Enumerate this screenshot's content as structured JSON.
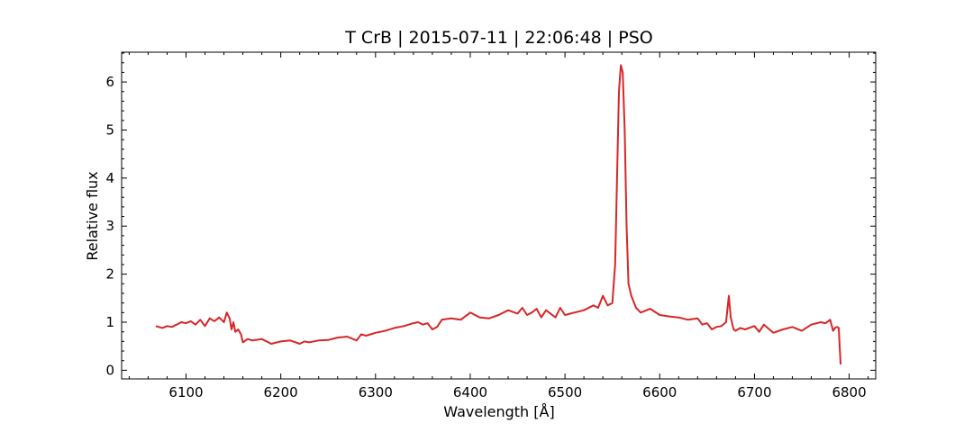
{
  "chart_data": {
    "type": "line",
    "title": "T CrB | 2015-07-11 | 22:06:48 | PSO",
    "xlabel": "Wavelength [Å]",
    "ylabel": "Relative flux",
    "xlim": [
      6032,
      6828
    ],
    "ylim": [
      -0.18,
      6.62
    ],
    "xticks": [
      6100,
      6200,
      6300,
      6400,
      6500,
      6600,
      6700,
      6800
    ],
    "yticks": [
      0,
      1,
      2,
      3,
      4,
      5,
      6
    ],
    "grid": false,
    "line_color": "#d62728",
    "series": [
      {
        "x": [
          6068,
          6075,
          6080,
          6085,
          6090,
          6095,
          6100,
          6105,
          6110,
          6115,
          6120,
          6125,
          6130,
          6135,
          6140,
          6143,
          6146,
          6148,
          6150,
          6152,
          6155,
          6158,
          6160,
          6165,
          6170,
          6180,
          6190,
          6200,
          6210,
          6220,
          6225,
          6230,
          6240,
          6250,
          6260,
          6270,
          6280,
          6285,
          6290,
          6300,
          6310,
          6320,
          6330,
          6340,
          6345,
          6350,
          6355,
          6360,
          6365,
          6370,
          6380,
          6390,
          6400,
          6405,
          6410,
          6420,
          6430,
          6440,
          6450,
          6455,
          6460,
          6465,
          6470,
          6475,
          6480,
          6490,
          6495,
          6500,
          6510,
          6520,
          6530,
          6535,
          6538,
          6540,
          6545,
          6550,
          6553,
          6555,
          6557,
          6559,
          6561,
          6563,
          6565,
          6567,
          6570,
          6575,
          6580,
          6590,
          6600,
          6610,
          6620,
          6630,
          6640,
          6645,
          6650,
          6655,
          6660,
          6665,
          6670,
          6673,
          6675,
          6678,
          6680,
          6685,
          6690,
          6700,
          6705,
          6710,
          6720,
          6730,
          6740,
          6750,
          6760,
          6770,
          6775,
          6780,
          6783,
          6785,
          6787,
          6789,
          6790,
          6791
        ],
        "y": [
          0.92,
          0.88,
          0.92,
          0.9,
          0.95,
          1.0,
          0.98,
          1.02,
          0.95,
          1.05,
          0.92,
          1.08,
          1.02,
          1.1,
          1.0,
          1.2,
          1.08,
          0.85,
          1.0,
          0.8,
          0.85,
          0.75,
          0.58,
          0.65,
          0.62,
          0.65,
          0.55,
          0.6,
          0.62,
          0.55,
          0.6,
          0.58,
          0.62,
          0.63,
          0.68,
          0.7,
          0.62,
          0.75,
          0.72,
          0.78,
          0.82,
          0.88,
          0.92,
          0.98,
          1.0,
          0.95,
          0.98,
          0.85,
          0.9,
          1.05,
          1.08,
          1.05,
          1.2,
          1.15,
          1.1,
          1.08,
          1.15,
          1.25,
          1.18,
          1.3,
          1.15,
          1.2,
          1.28,
          1.1,
          1.25,
          1.1,
          1.3,
          1.15,
          1.2,
          1.25,
          1.35,
          1.3,
          1.45,
          1.55,
          1.35,
          1.4,
          2.2,
          4.0,
          5.8,
          6.35,
          6.2,
          5.0,
          3.0,
          1.8,
          1.55,
          1.3,
          1.2,
          1.28,
          1.15,
          1.12,
          1.1,
          1.05,
          1.08,
          0.95,
          0.98,
          0.85,
          0.9,
          0.92,
          1.0,
          1.55,
          1.1,
          0.85,
          0.82,
          0.88,
          0.85,
          0.92,
          0.8,
          0.95,
          0.78,
          0.85,
          0.9,
          0.82,
          0.95,
          1.0,
          0.98,
          1.05,
          0.82,
          0.88,
          0.9,
          0.88,
          0.5,
          0.12
        ]
      }
    ]
  }
}
